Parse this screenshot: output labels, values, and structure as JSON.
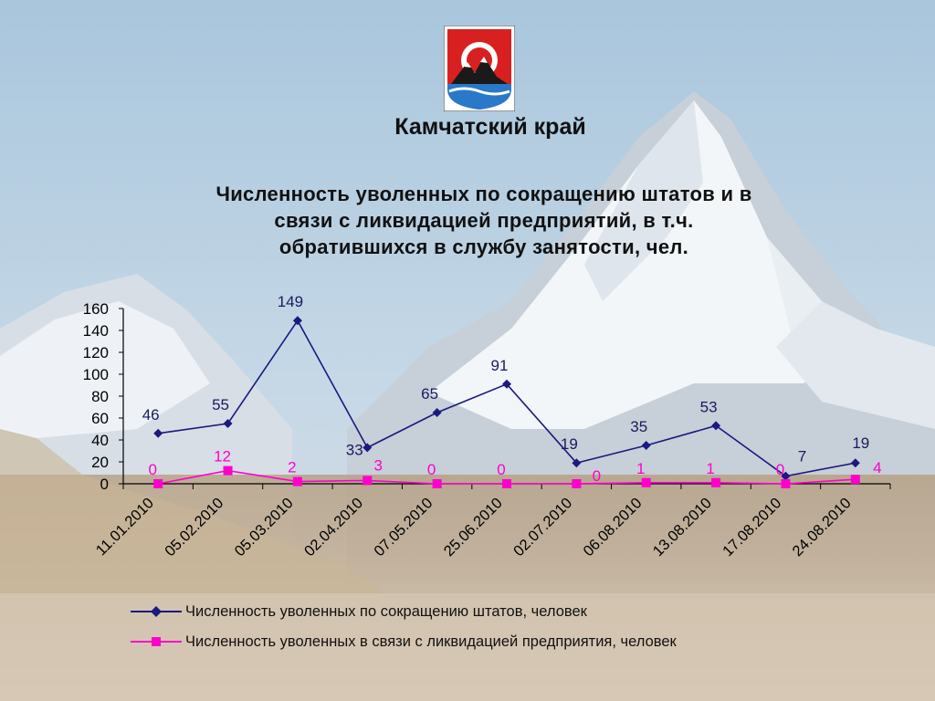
{
  "page": {
    "region_title": "Камчатский край",
    "chart_title_lines": [
      "Численность уволенных по сокращению штатов и в",
      "связи с ликвидацией предприятий, в т.ч.",
      "обратившихся в службу занятости, чел."
    ]
  },
  "chart_data": {
    "type": "line",
    "title": "Численность уволенных по сокращению штатов и в связи с ликвидацией предприятий, в т.ч. обратившихся в службу занятости, чел.",
    "x": [
      "11.01.2010",
      "05.02.2010",
      "05.03.2010",
      "02.04.2010",
      "07.05.2010",
      "25.06.2010",
      "02.07.2010",
      "06.08.2010",
      "13.08.2010",
      "17.08.2010",
      "24.08.2010"
    ],
    "series": [
      {
        "name": "Численность уволенных по сокращению штатов, человек",
        "values": [
          46,
          55,
          149,
          33,
          65,
          91,
          19,
          35,
          53,
          7,
          19
        ],
        "color": "#1a1a80",
        "marker": "diamond"
      },
      {
        "name": "Численность уволенных в связи с ликвидацией предприятия, человек",
        "values": [
          0,
          12,
          2,
          3,
          0,
          0,
          0,
          1,
          1,
          0,
          4
        ],
        "color": "#ff00cc",
        "marker": "square"
      }
    ],
    "ylim": [
      0,
      160
    ],
    "yticks": [
      0,
      20,
      40,
      60,
      80,
      100,
      120,
      140,
      160
    ],
    "grid": false,
    "legend": "bottom"
  }
}
